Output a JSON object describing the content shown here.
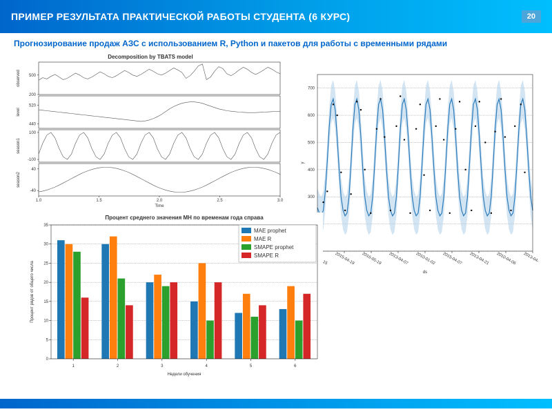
{
  "header": {
    "title": "ПРИМЕР РЕЗУЛЬТАТА ПРАКТИЧЕСКОЙ РАБОТЫ СТУДЕНТА (6 КУРС)",
    "page": "20"
  },
  "subtitle": "Прогнозирование продаж АЗС с использованием R, Python и пакетов для работы с временными рядами",
  "decomp": {
    "title": "Decomposition by TBATS model",
    "xlabel": "Time",
    "xticks": [
      "1.0",
      "1.5",
      "2.0",
      "2.5",
      "3.0"
    ],
    "panels": [
      {
        "label": "observed",
        "ylim": [
          200,
          700
        ],
        "yticks": [
          "200",
          "500"
        ],
        "data": [
          420,
          460,
          440,
          480,
          510,
          470,
          430,
          450,
          490,
          530,
          500,
          460,
          440,
          470,
          510,
          550,
          520,
          480,
          460,
          490,
          530,
          570,
          540,
          500,
          480,
          510,
          550,
          590,
          560,
          520,
          500,
          530,
          570,
          610,
          580,
          540,
          450,
          490,
          560,
          640,
          670,
          430,
          470,
          560,
          630,
          600,
          520,
          490,
          530,
          580,
          620,
          590,
          540,
          510,
          540,
          580,
          620,
          590,
          550,
          520
        ]
      },
      {
        "label": "level",
        "ylim": [
          420,
          560
        ],
        "yticks": [
          "440",
          "520"
        ],
        "data": [
          500,
          498,
          496,
          494,
          492,
          490,
          488,
          486,
          484,
          482,
          480,
          478,
          476,
          474,
          472,
          470,
          468,
          466,
          464,
          462,
          460,
          458,
          456,
          454,
          452,
          450,
          452,
          456,
          462,
          470,
          480,
          492,
          504,
          514,
          522,
          528,
          532,
          534,
          534,
          532,
          528,
          522,
          516,
          510,
          504,
          500,
          496,
          494,
          492,
          490,
          489,
          488,
          488,
          488,
          489,
          490,
          491,
          492,
          493,
          494
        ]
      },
      {
        "label": "season1",
        "ylim": [
          -120,
          120
        ],
        "yticks": [
          "-100",
          "100"
        ],
        "data": [
          -60,
          20,
          80,
          100,
          60,
          -20,
          -80,
          -100,
          -60,
          20,
          80,
          100,
          60,
          -20,
          -80,
          -100,
          -60,
          20,
          80,
          100,
          60,
          -20,
          -80,
          -100,
          -60,
          20,
          80,
          100,
          60,
          -20,
          -80,
          -100,
          -60,
          20,
          80,
          100,
          60,
          -20,
          -80,
          -100,
          -60,
          20,
          80,
          100,
          60,
          -20,
          -80,
          -100,
          -60,
          20,
          80,
          100,
          60,
          -20,
          -80,
          -100,
          -60,
          20,
          80,
          100
        ]
      },
      {
        "label": "season2",
        "ylim": [
          -60,
          60
        ],
        "yticks": [
          "-40",
          "40"
        ],
        "data": [
          -45,
          -42,
          -38,
          -33,
          -27,
          -20,
          -12,
          -4,
          4,
          12,
          20,
          27,
          33,
          38,
          42,
          45,
          46,
          46,
          45,
          42,
          38,
          33,
          27,
          20,
          12,
          4,
          -4,
          -12,
          -20,
          -27,
          -33,
          -38,
          -42,
          -45,
          -46,
          -46,
          -45,
          -42,
          -38,
          -33,
          -27,
          -20,
          -12,
          -4,
          4,
          12,
          20,
          27,
          33,
          38,
          42,
          45,
          46,
          46,
          45,
          42,
          38,
          33,
          27,
          20
        ]
      }
    ]
  },
  "forecast": {
    "ylabel": "y",
    "xlabel": "ds",
    "ylim": [
      100,
      750
    ],
    "ytick_step": 100,
    "xticks": [
      "2015-01-15",
      "2015-04-19",
      "2016-05-19",
      "2013-04-07",
      "2010-01-02",
      "2015-04-07",
      "2013-04-21",
      "2010-04-06",
      "2013-04-26"
    ],
    "line_color": "#2b7bba",
    "band_color": "#aecde8",
    "data": [
      260,
      240,
      230,
      250,
      320,
      430,
      560,
      640,
      660,
      620,
      520,
      400,
      300,
      250,
      230,
      240,
      300,
      420,
      550,
      640,
      660,
      620,
      520,
      400,
      300,
      250,
      230,
      240,
      300,
      420,
      550,
      640,
      660,
      620,
      520,
      400,
      300,
      250,
      230,
      240,
      300,
      420,
      550,
      640,
      660,
      620,
      520,
      400,
      300,
      250,
      230,
      240,
      300,
      420,
      550,
      640,
      660,
      620,
      520,
      400,
      300,
      250,
      230,
      240,
      300,
      420,
      550,
      640,
      660,
      620,
      520,
      400,
      300,
      250,
      230,
      240,
      300,
      420,
      550,
      640,
      660,
      620,
      520,
      400,
      300,
      250,
      230,
      240,
      300,
      420,
      550,
      640,
      660,
      620,
      520,
      400,
      300,
      250,
      230,
      240,
      300,
      420,
      550,
      640,
      660,
      620,
      520,
      400,
      300,
      250
    ],
    "band": 70,
    "scatter": [
      [
        3,
        280
      ],
      [
        5,
        320
      ],
      [
        8,
        640
      ],
      [
        10,
        600
      ],
      [
        12,
        390
      ],
      [
        14,
        250
      ],
      [
        17,
        310
      ],
      [
        20,
        650
      ],
      [
        22,
        620
      ],
      [
        24,
        400
      ],
      [
        27,
        240
      ],
      [
        30,
        550
      ],
      [
        32,
        660
      ],
      [
        34,
        520
      ],
      [
        37,
        250
      ],
      [
        40,
        560
      ],
      [
        42,
        670
      ],
      [
        44,
        510
      ],
      [
        47,
        240
      ],
      [
        50,
        550
      ],
      [
        52,
        640
      ],
      [
        54,
        380
      ],
      [
        57,
        250
      ],
      [
        60,
        560
      ],
      [
        62,
        660
      ],
      [
        64,
        510
      ],
      [
        67,
        240
      ],
      [
        70,
        550
      ],
      [
        72,
        650
      ],
      [
        75,
        400
      ],
      [
        78,
        250
      ],
      [
        80,
        560
      ],
      [
        82,
        650
      ],
      [
        85,
        500
      ],
      [
        88,
        240
      ],
      [
        90,
        540
      ],
      [
        93,
        660
      ],
      [
        95,
        520
      ],
      [
        98,
        250
      ],
      [
        100,
        560
      ],
      [
        103,
        640
      ],
      [
        105,
        390
      ]
    ]
  },
  "bars": {
    "title": "Процент среднего значения МН по временам года справа",
    "xlabel": "Недели обучения",
    "ylabel": "Процент рядов от общего числа",
    "ylim": [
      0,
      35
    ],
    "ytick_step": 5,
    "categories": [
      "1",
      "2",
      "3",
      "4",
      "5",
      "6"
    ],
    "series": [
      {
        "name": "MAE prophet",
        "color": "#1f77b4",
        "values": [
          31,
          30,
          20,
          15,
          12,
          13
        ]
      },
      {
        "name": "MAE R",
        "color": "#ff7f0e",
        "values": [
          30,
          32,
          22,
          25,
          17,
          19
        ]
      },
      {
        "name": "SMAPE prophet",
        "color": "#2ca02c",
        "values": [
          28,
          21,
          19,
          10,
          11,
          10
        ]
      },
      {
        "name": "SMAPE R",
        "color": "#d62728",
        "values": [
          16,
          14,
          20,
          20,
          14,
          17
        ]
      }
    ],
    "bar_group_width": 0.72
  }
}
